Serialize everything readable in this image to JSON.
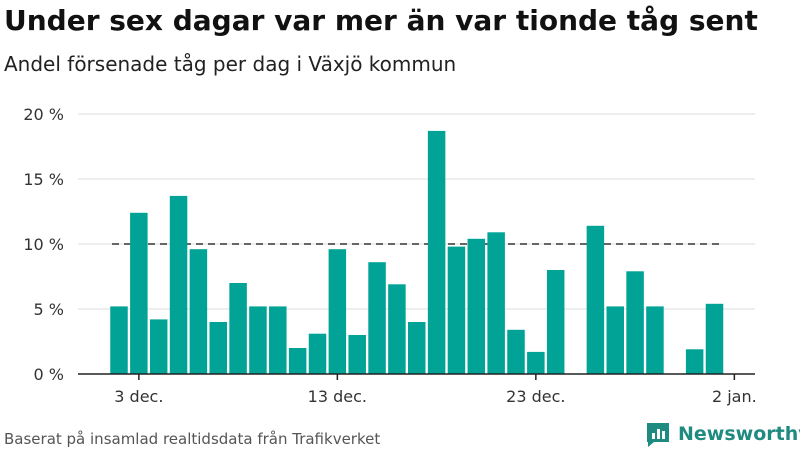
{
  "title": "Under sex dagar var mer än var tionde tåg sent",
  "subtitle": "Andel försenade tåg per dag i Växjö kommun",
  "footer": "Baserat på insamlad realtidsdata från Trafikverket",
  "brand": "Newsworthy",
  "colors": {
    "bar": "#00a396",
    "reference_line": "#666666",
    "grid": "#dddddd",
    "brand": "#1f8a80"
  },
  "chart_data": {
    "type": "bar",
    "y_unit": "%",
    "ylim": [
      0,
      20
    ],
    "yticks": [
      {
        "value": 0,
        "label": "0 %"
      },
      {
        "value": 5,
        "label": "5 %"
      },
      {
        "value": 10,
        "label": "10 %"
      },
      {
        "value": 15,
        "label": "15 %"
      },
      {
        "value": 20,
        "label": "20 %"
      }
    ],
    "xticks": [
      {
        "date": "2021-12-03",
        "label": "3 dec."
      },
      {
        "date": "2021-12-13",
        "label": "13 dec."
      },
      {
        "date": "2021-12-23",
        "label": "23 dec."
      },
      {
        "date": "2022-01-02",
        "label": "2 jan."
      }
    ],
    "x": [
      "2021-12-02",
      "2021-12-03",
      "2021-12-04",
      "2021-12-05",
      "2021-12-06",
      "2021-12-07",
      "2021-12-08",
      "2021-12-09",
      "2021-12-10",
      "2021-12-11",
      "2021-12-12",
      "2021-12-13",
      "2021-12-14",
      "2021-12-15",
      "2021-12-16",
      "2021-12-17",
      "2021-12-18",
      "2021-12-19",
      "2021-12-20",
      "2021-12-21",
      "2021-12-22",
      "2021-12-23",
      "2021-12-24",
      "2021-12-25",
      "2021-12-26",
      "2021-12-27",
      "2021-12-28",
      "2021-12-29",
      "2021-12-30",
      "2021-12-31",
      "2022-01-01"
    ],
    "values": [
      5.2,
      12.4,
      4.2,
      13.7,
      9.6,
      4.0,
      7.0,
      5.2,
      5.2,
      2.0,
      3.1,
      9.6,
      3.0,
      8.6,
      6.9,
      4.0,
      18.7,
      9.8,
      10.4,
      10.9,
      3.4,
      1.7,
      8.0,
      0,
      11.4,
      5.2,
      7.9,
      5.2,
      0,
      1.9,
      5.4
    ],
    "reference_line": {
      "value": 10,
      "style": "dashed"
    },
    "grid": true
  }
}
